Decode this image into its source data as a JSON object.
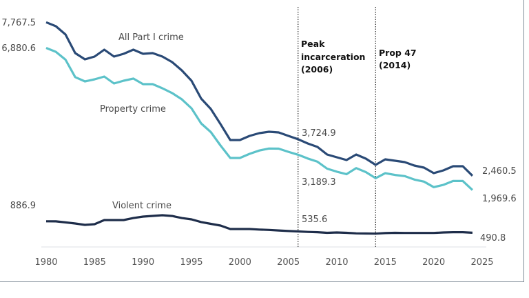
{
  "chart_data": {
    "type": "line",
    "title": "",
    "xlabel": "",
    "ylabel": "",
    "xlim": [
      1980,
      2025
    ],
    "ylim": [
      0,
      8500
    ],
    "grid": false,
    "x_ticks": [
      "1980",
      "1985",
      "1990",
      "1995",
      "2000",
      "2005",
      "2010",
      "2015",
      "2020",
      "2025"
    ],
    "x": [
      1980,
      1981,
      1982,
      1983,
      1984,
      1985,
      1986,
      1987,
      1988,
      1989,
      1990,
      1991,
      1992,
      1993,
      1994,
      1995,
      1996,
      1997,
      1998,
      1999,
      2000,
      2001,
      2002,
      2003,
      2004,
      2005,
      2006,
      2007,
      2008,
      2009,
      2010,
      2011,
      2012,
      2013,
      2014,
      2015,
      2016,
      2017,
      2018,
      2019,
      2020,
      2021,
      2022,
      2023,
      2024
    ],
    "series": [
      {
        "name": "All Part I crime",
        "color": "#2a4a76",
        "values": [
          7767.5,
          7632,
          7346,
          6702,
          6487,
          6583,
          6821,
          6583,
          6678,
          6821,
          6678,
          6702,
          6583,
          6392,
          6106,
          5748,
          5128,
          4770,
          4245,
          3697,
          3697,
          3840,
          3935,
          3983,
          3959,
          3840,
          3724.9,
          3578,
          3458,
          3196,
          3101,
          3005,
          3196,
          3053,
          2838,
          3029,
          2981,
          2934,
          2814,
          2743,
          2552,
          2647,
          2790,
          2790,
          2460.5
        ]
      },
      {
        "name": "Property crime",
        "color": "#5cc2c9",
        "values": [
          6880.6,
          6747,
          6476,
          5872,
          5724,
          5796,
          5891,
          5653,
          5748,
          5821,
          5628,
          5629,
          5486,
          5322,
          5106,
          4794,
          4268,
          3970,
          3505,
          3077,
          3077,
          3220,
          3335,
          3403,
          3399,
          3290,
          3189.3,
          3058,
          2948,
          2706,
          2601,
          2515,
          2726,
          2588,
          2378,
          2549,
          2491,
          2449,
          2329,
          2258,
          2067,
          2147,
          2280,
          2280,
          1969.6
        ]
      },
      {
        "name": "Violent crime",
        "color": "#1e2d4a",
        "values": [
          886.9,
          885,
          850,
          810,
          763,
          787,
          930,
          930,
          930,
          1000,
          1050,
          1073,
          1097,
          1070,
          1000,
          954,
          860,
          800,
          740,
          620,
          620,
          620,
          600,
          590,
          570,
          550,
          535.6,
          520,
          510,
          490,
          500,
          490,
          470,
          465,
          460,
          480,
          490,
          485,
          485,
          485,
          485,
          500,
          510,
          510,
          490.8
        ]
      }
    ],
    "annotations": [
      {
        "x": 2006,
        "lines": [
          "Peak",
          "incarceration",
          "(2006)"
        ],
        "style": "dotted vertical line"
      },
      {
        "x": 2014,
        "lines": [
          "Prop 47",
          "(2014)"
        ],
        "style": "dotted vertical line"
      }
    ],
    "value_labels": {
      "all_start": "7,767.5",
      "property_start": "6,880.6",
      "violent_start": "886.9",
      "all_2006": "3,724.9",
      "property_2006": "3,189.3",
      "violent_2006": "535.6",
      "all_end": "2,460.5",
      "property_end": "1,969.6",
      "violent_end": "490.8"
    }
  }
}
